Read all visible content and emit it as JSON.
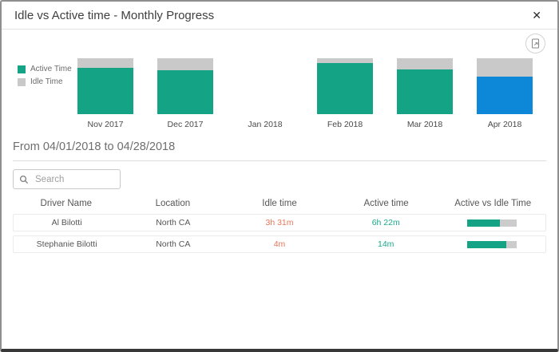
{
  "dialog": {
    "title": "Idle vs Active time - Monthly Progress",
    "close_glyph": "✕"
  },
  "chart_data": {
    "type": "bar",
    "stacked": true,
    "unit": "percent_of_month_total",
    "categories": [
      "Nov 2017",
      "Dec 2017",
      "Jan 2018",
      "Feb 2018",
      "Mar 2018",
      "Apr 2018"
    ],
    "series": [
      {
        "name": "Active Time",
        "color": "#15A386",
        "values": [
          83,
          79,
          0,
          91,
          80,
          67
        ]
      },
      {
        "name": "Idle Time",
        "color": "#C9C9C9",
        "values": [
          17,
          21,
          0,
          9,
          20,
          33
        ]
      }
    ],
    "highlight": {
      "category": "Apr 2018",
      "color": "#0D87D8"
    },
    "legend_position": "left",
    "title": "Idle vs Active time - Monthly Progress"
  },
  "period": {
    "label": "From 04/01/2018 to 04/28/2018"
  },
  "search": {
    "placeholder": "Search"
  },
  "table": {
    "columns": [
      "Driver Name",
      "Location",
      "Idle time",
      "Active time",
      "Active vs Idle Time"
    ],
    "rows": [
      {
        "driver": "Al Bilotti",
        "location": "North CA",
        "idle": "3h 31m",
        "active": "6h 22m",
        "active_pct": 65
      },
      {
        "driver": "Stephanie Bilotti",
        "location": "North CA",
        "idle": "4m",
        "active": "14m",
        "active_pct": 78
      }
    ]
  },
  "colors": {
    "active_bar": "#15A386",
    "idle_bar": "#C9C9C9",
    "highlight_bar": "#0D87D8",
    "idle_text": "#E8765A",
    "active_text": "#18A98C"
  }
}
